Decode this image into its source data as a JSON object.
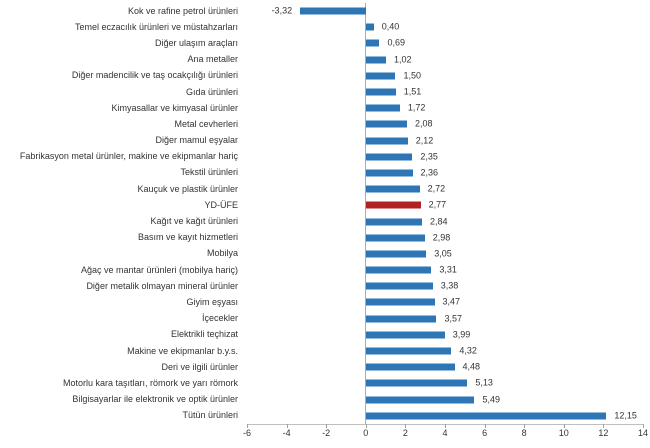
{
  "chart_data": {
    "type": "bar",
    "orientation": "horizontal",
    "title": "",
    "xlabel": "",
    "ylabel": "",
    "xlim": [
      -6,
      14
    ],
    "xticks": [
      -6,
      -4,
      -2,
      0,
      2,
      4,
      6,
      8,
      10,
      12,
      14
    ],
    "xtick_labels": [
      "-6",
      "-4",
      "-2",
      "0",
      "2",
      "4",
      "6",
      "8",
      "10",
      "12",
      "14"
    ],
    "grid": false,
    "legend": false,
    "categories": [
      "Kok ve rafine petrol ürünleri",
      "Temel eczacılık ürünleri ve müstahzarları",
      "Diğer ulaşım araçları",
      "Ana metaller",
      "Diğer madencilik ve taş ocakçılığı ürünleri",
      "Gıda ürünleri",
      "Kimyasallar ve kimyasal ürünler",
      "Metal cevherleri",
      "Diğer mamul eşyalar",
      "Fabrikasyon metal ürünler, makine ve ekipmanlar hariç",
      "Tekstil ürünleri",
      "Kauçuk ve plastik ürünler",
      "YD-ÜFE",
      "Kağıt ve kağıt ürünleri",
      "Basım ve kayıt hizmetleri",
      "Mobilya",
      "Ağaç ve mantar ürünleri (mobilya hariç)",
      "Diğer metalik olmayan mineral ürünler",
      "Giyim eşyası",
      "İçecekler",
      "Elektrikli teçhizat",
      "Makine ve ekipmanlar b.y.s.",
      "Deri ve ilgili ürünler",
      "Motorlu kara taşıtları, römork ve yarı römork",
      "Bilgisayarlar ile elektronik ve optik ürünler",
      "Tütün ürünleri"
    ],
    "values": [
      -3.32,
      0.4,
      0.69,
      1.02,
      1.5,
      1.51,
      1.72,
      2.08,
      2.12,
      2.35,
      2.36,
      2.72,
      2.77,
      2.84,
      2.98,
      3.05,
      3.31,
      3.38,
      3.47,
      3.57,
      3.99,
      4.32,
      4.48,
      5.13,
      5.49,
      12.15
    ],
    "value_labels": [
      "-3,32",
      "0,40",
      "0,69",
      "1,02",
      "1,50",
      "1,51",
      "1,72",
      "2,08",
      "2,12",
      "2,35",
      "2,36",
      "2,72",
      "2,77",
      "2,84",
      "2,98",
      "3,05",
      "3,31",
      "3,38",
      "3,47",
      "3,57",
      "3,99",
      "4,32",
      "4,48",
      "5,13",
      "5,49",
      "12,15"
    ],
    "highlight_category": "YD-ÜFE",
    "highlight_index": 12,
    "colors": {
      "bar": "#2e75b6",
      "highlight": "#b22222",
      "text": "#333333",
      "axis_line": "#bfbfbf",
      "zero_line": "#ababab",
      "tick": "#a0a0a0",
      "background": "#ffffff"
    }
  }
}
